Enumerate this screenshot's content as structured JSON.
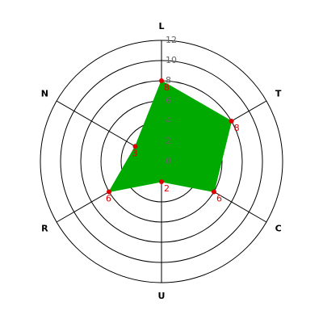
{
  "chart_data": {
    "type": "radar",
    "categories": [
      "L",
      "T",
      "C",
      "U",
      "R",
      "N"
    ],
    "values": [
      8,
      8,
      6,
      2,
      6,
      3
    ],
    "color": "#00aa00",
    "point_color": "#dd0000",
    "ylim": [
      0,
      12
    ],
    "yticks": [
      0,
      2,
      4,
      6,
      8,
      10,
      12
    ],
    "grid": true
  }
}
